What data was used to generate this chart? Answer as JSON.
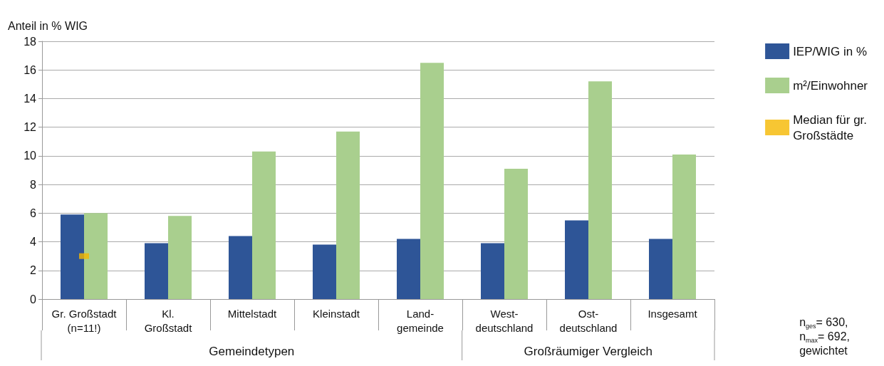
{
  "chart_data": {
    "type": "bar",
    "ylabel": "Anteil in % WIG",
    "categories": [
      "Gr. Großstadt\n(n=11!)",
      "Kl.\nGroßstadt",
      "Mittelstadt",
      "Kleinstadt",
      "Land-\ngemeinde",
      "West-\ndeutschland",
      "Ost-\ndeutschland",
      "Insgesamt"
    ],
    "series": [
      {
        "name": "IEP/WIG in %",
        "color": "#2e5597",
        "values": [
          5.9,
          3.9,
          4.4,
          3.8,
          4.2,
          3.9,
          5.5,
          4.2
        ]
      },
      {
        "name": "m²/Einwohner",
        "color": "#a9cf8e",
        "values": [
          6.0,
          5.8,
          10.3,
          11.7,
          16.5,
          9.1,
          15.2,
          10.1
        ]
      },
      {
        "name": "Median für gr.\nGroßstädte",
        "type": "scatter",
        "color": "#f5b800",
        "x": [
          "Gr. Großstadt\n(n=11!)"
        ],
        "values": [
          3.0
        ]
      }
    ],
    "ylim": [
      0,
      18
    ],
    "yticks": [
      0,
      2,
      4,
      6,
      8,
      10,
      12,
      14,
      16,
      18
    ],
    "grid": "y",
    "legend": "right",
    "annotations": [
      "Gemeindetypen",
      "Großräumiger Vergleich",
      "n$_{ges}$= 630,\nn$_{max}$= 692,\ngewichtet"
    ]
  }
}
